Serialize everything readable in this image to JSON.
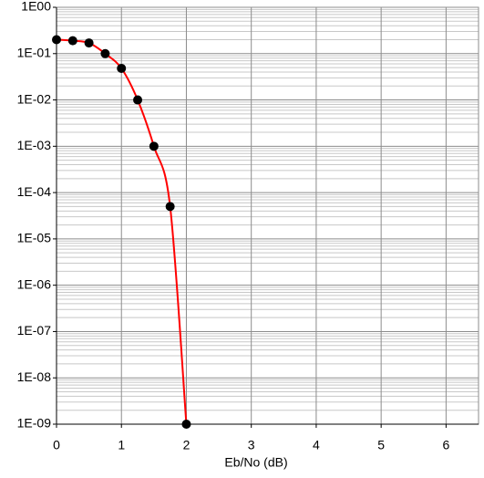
{
  "chart_data": {
    "type": "line",
    "x_label": "Eb/No (dB)",
    "x": [
      0,
      0.25,
      0.5,
      0.75,
      1,
      1.25,
      1.5,
      1.75,
      2
    ],
    "values": [
      0.2,
      0.19,
      0.17,
      0.1,
      0.048,
      0.01,
      0.001,
      5e-05,
      1e-09
    ],
    "line_color": "#ff0000",
    "marker_color": "#000000",
    "xlim": [
      0,
      6.5
    ],
    "xticks": [
      0,
      1,
      2,
      3,
      4,
      5,
      6
    ],
    "ylim": [
      1e-09,
      1
    ],
    "log_y": true,
    "yticks": [
      {
        "value": 1,
        "label": "1E00"
      },
      {
        "value": 0.1,
        "label": "1E-01"
      },
      {
        "value": 0.01,
        "label": "1E-02"
      },
      {
        "value": 0.001,
        "label": "1E-03"
      },
      {
        "value": 0.0001,
        "label": "1E-04"
      },
      {
        "value": 1e-05,
        "label": "1E-05"
      },
      {
        "value": 1e-06,
        "label": "1E-06"
      },
      {
        "value": 1e-07,
        "label": "1E-07"
      },
      {
        "value": 1e-08,
        "label": "1E-08"
      },
      {
        "value": 1e-09,
        "label": "1E-09"
      }
    ],
    "grid": true,
    "minor_grid": true
  }
}
